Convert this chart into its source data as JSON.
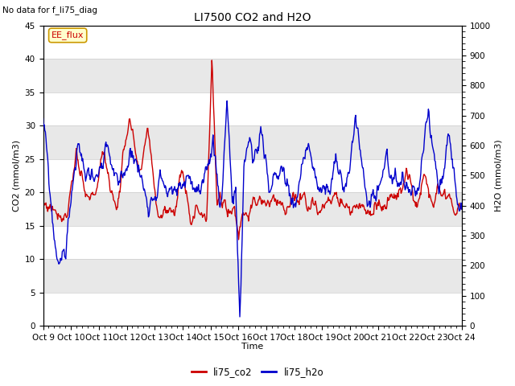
{
  "title": "LI7500 CO2 and H2O",
  "subtitle": "No data for f_li75_diag",
  "xlabel": "Time",
  "ylabel_left": "CO2 (mmol/m3)",
  "ylabel_right": "H2O (mmol/m3)",
  "ylim_left": [
    0,
    45
  ],
  "ylim_right": [
    0,
    1000
  ],
  "yticks_left": [
    0,
    5,
    10,
    15,
    20,
    25,
    30,
    35,
    40,
    45
  ],
  "yticks_right": [
    0,
    100,
    200,
    300,
    400,
    500,
    600,
    700,
    800,
    900,
    1000
  ],
  "xtick_labels": [
    "Oct 9",
    "Oct 10",
    "Oct 11",
    "Oct 12",
    "Oct 13",
    "Oct 14",
    "Oct 15",
    "Oct 16",
    "Oct 17",
    "Oct 18",
    "Oct 19",
    "Oct 20",
    "Oct 21",
    "Oct 22",
    "Oct 23",
    "Oct 24"
  ],
  "legend_label1": "li75_co2",
  "legend_label2": "li75_h2o",
  "color_co2": "#cc0000",
  "color_h2o": "#0000cc",
  "annotation_box": "EE_flux",
  "grid_white": "#ffffff",
  "band_gray": "#e8e8e8",
  "band_white": "#ffffff"
}
